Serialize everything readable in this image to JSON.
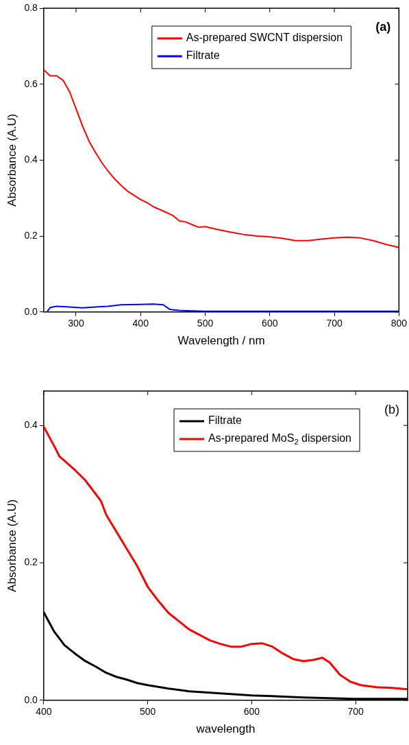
{
  "chart_data": [
    {
      "type": "line",
      "xlabel": "Wavelength / nm",
      "ylabel": "Absorbance (A.U)",
      "annotations": [
        "(a)"
      ],
      "legend": "top right",
      "marker": "none",
      "line_style": "solid",
      "grid": false,
      "xlim": [
        250,
        800
      ],
      "xticks": [
        300,
        400,
        500,
        600,
        700,
        800
      ],
      "ylim": [
        0,
        0.8
      ],
      "yticks": [
        {
          "value": 0,
          "label": "0.0"
        },
        0.2,
        0.4,
        0.6,
        0.8
      ],
      "series": [
        {
          "name": "As-prepared SWCNT dispersion",
          "color": "#ff0000",
          "x": [
            250,
            260,
            270,
            280,
            290,
            300,
            310,
            320,
            330,
            340,
            350,
            360,
            370,
            380,
            390,
            400,
            410,
            420,
            440,
            450,
            460,
            470,
            480,
            490,
            500,
            520,
            540,
            560,
            580,
            600,
            620,
            640,
            660,
            680,
            700,
            720,
            740,
            760,
            780,
            800
          ],
          "values": [
            0.638,
            0.622,
            0.622,
            0.61,
            0.58,
            0.535,
            0.49,
            0.45,
            0.42,
            0.393,
            0.37,
            0.35,
            0.333,
            0.318,
            0.307,
            0.296,
            0.288,
            0.277,
            0.262,
            0.254,
            0.24,
            0.237,
            0.23,
            0.223,
            0.225,
            0.217,
            0.21,
            0.204,
            0.2,
            0.198,
            0.194,
            0.188,
            0.188,
            0.192,
            0.195,
            0.197,
            0.195,
            0.188,
            0.178,
            0.17
          ]
        },
        {
          "name": "Filtrate",
          "color": "#0000ff",
          "x": [
            255,
            260,
            270,
            290,
            310,
            330,
            350,
            370,
            400,
            420,
            435,
            445,
            460,
            480,
            500,
            600,
            700,
            800
          ],
          "values": [
            0,
            0.012,
            0.015,
            0.013,
            0.011,
            0.013,
            0.015,
            0.019,
            0.02,
            0.021,
            0.019,
            0.007,
            0.004,
            0.003,
            0.002,
            0.002,
            0.002,
            0.002
          ]
        }
      ]
    },
    {
      "type": "line",
      "xlabel": "wavelength",
      "ylabel": "Absorbance (A.U)",
      "annotations": [
        "(b)"
      ],
      "legend": "top right",
      "marker": "none",
      "line_style": "solid",
      "grid": false,
      "xlim": [
        400,
        750
      ],
      "xticks": [
        400,
        500,
        600,
        700
      ],
      "ylim": [
        0,
        0.45
      ],
      "yticks": [
        {
          "value": 0,
          "label": "0.0"
        },
        0.2,
        0.4
      ],
      "series": [
        {
          "name": "Filtrate",
          "color": "#000000",
          "x": [
            400,
            410,
            420,
            430,
            440,
            450,
            460,
            470,
            480,
            490,
            500,
            520,
            540,
            560,
            580,
            600,
            620,
            650,
            700,
            750
          ],
          "values": [
            0.128,
            0.1,
            0.08,
            0.068,
            0.057,
            0.049,
            0.04,
            0.034,
            0.03,
            0.025,
            0.022,
            0.017,
            0.013,
            0.011,
            0.009,
            0.007,
            0.006,
            0.004,
            0.002,
            0.002
          ]
        },
        {
          "name": "As-prepared MoS$_{2}$ dispersion",
          "color": "#ff0000",
          "x": [
            400,
            410,
            415,
            430,
            440,
            450,
            455,
            460,
            470,
            480,
            490,
            500,
            510,
            520,
            530,
            540,
            550,
            560,
            570,
            580,
            590,
            600,
            610,
            620,
            630,
            640,
            650,
            660,
            668,
            675,
            685,
            695,
            705,
            720,
            735,
            750
          ],
          "values": [
            0.398,
            0.37,
            0.355,
            0.335,
            0.32,
            0.3,
            0.29,
            0.27,
            0.245,
            0.22,
            0.195,
            0.165,
            0.145,
            0.127,
            0.115,
            0.103,
            0.095,
            0.087,
            0.082,
            0.078,
            0.078,
            0.082,
            0.083,
            0.078,
            0.068,
            0.06,
            0.057,
            0.059,
            0.062,
            0.055,
            0.037,
            0.027,
            0.022,
            0.019,
            0.018,
            0.016
          ]
        }
      ]
    }
  ]
}
